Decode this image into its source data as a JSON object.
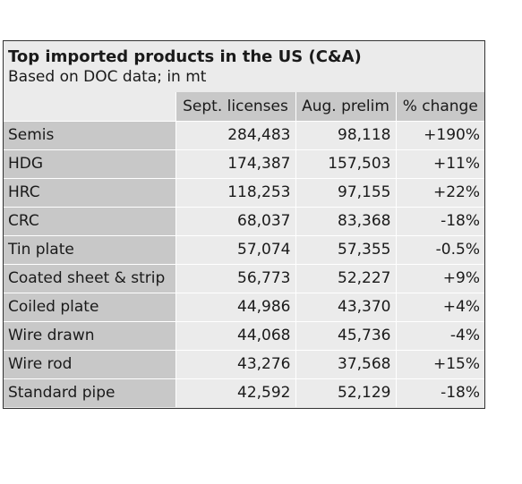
{
  "table": {
    "title": "Top imported products in the US (C&A)",
    "subtitle": "Based on DOC data; in mt",
    "columns": [
      "",
      "Sept. licenses",
      "Aug. prelim",
      "% change"
    ],
    "rows": [
      {
        "product": "Semis",
        "sept_licenses": "284,483",
        "aug_prelim": "98,118",
        "pct_change": "+190%"
      },
      {
        "product": "HDG",
        "sept_licenses": "174,387",
        "aug_prelim": "157,503",
        "pct_change": "+11%"
      },
      {
        "product": "HRC",
        "sept_licenses": "118,253",
        "aug_prelim": "97,155",
        "pct_change": "+22%"
      },
      {
        "product": "CRC",
        "sept_licenses": "68,037",
        "aug_prelim": "83,368",
        "pct_change": "-18%"
      },
      {
        "product": "Tin plate",
        "sept_licenses": "57,074",
        "aug_prelim": "57,355",
        "pct_change": "-0.5%"
      },
      {
        "product": "Coated sheet & strip",
        "sept_licenses": "56,773",
        "aug_prelim": "52,227",
        "pct_change": "+9%"
      },
      {
        "product": "Coiled plate",
        "sept_licenses": "44,986",
        "aug_prelim": "43,370",
        "pct_change": "+4%"
      },
      {
        "product": "Wire drawn",
        "sept_licenses": "44,068",
        "aug_prelim": "45,736",
        "pct_change": "-4%"
      },
      {
        "product": "Wire rod",
        "sept_licenses": "43,276",
        "aug_prelim": "37,568",
        "pct_change": "+15%"
      },
      {
        "product": "Standard pipe",
        "sept_licenses": "42,592",
        "aug_prelim": "52,129",
        "pct_change": "-18%"
      }
    ]
  }
}
